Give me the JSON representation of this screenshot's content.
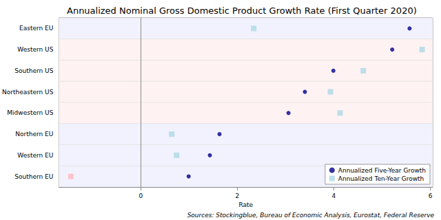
{
  "chart_data": {
    "type": "scatter",
    "title": "Annualized Nominal Gross Domestic Product Growth Rate (First Quarter 2020)",
    "x_label": "Rate",
    "annotations": [
      "Sources: Stockingblue, Bureau of Economic Analysis, Eurostat, Federal Reserve"
    ],
    "orientation": "horizontal",
    "categories": [
      "Eastern EU",
      "Western US",
      "Southern US",
      "Northeastern US",
      "Midwestern US",
      "Northern EU",
      "Western EU",
      "Southern EU"
    ],
    "series": [
      {
        "name": "Annualized Five-Year Growth",
        "color": "#00008b",
        "marker": "circle",
        "values": [
          5.57,
          5.21,
          3.99,
          3.4,
          3.06,
          1.63,
          1.43,
          0.99
        ]
      },
      {
        "name": "Annualized Ten-Year Growth",
        "color": "#add8e6",
        "marker": "square",
        "colors": [
          "#add8e6",
          "#add8e6",
          "#add8e6",
          "#add8e6",
          "#add8e6",
          "#add8e6",
          "#add8e6",
          "#ffb6c1"
        ],
        "values": [
          2.34,
          5.83,
          4.61,
          3.93,
          4.13,
          0.64,
          0.74,
          -1.45
        ]
      }
    ],
    "xlim": [
      -1.7,
      6.05
    ],
    "xticks": [
      0,
      2,
      4,
      6
    ],
    "grid": true,
    "legend": "lower right"
  }
}
